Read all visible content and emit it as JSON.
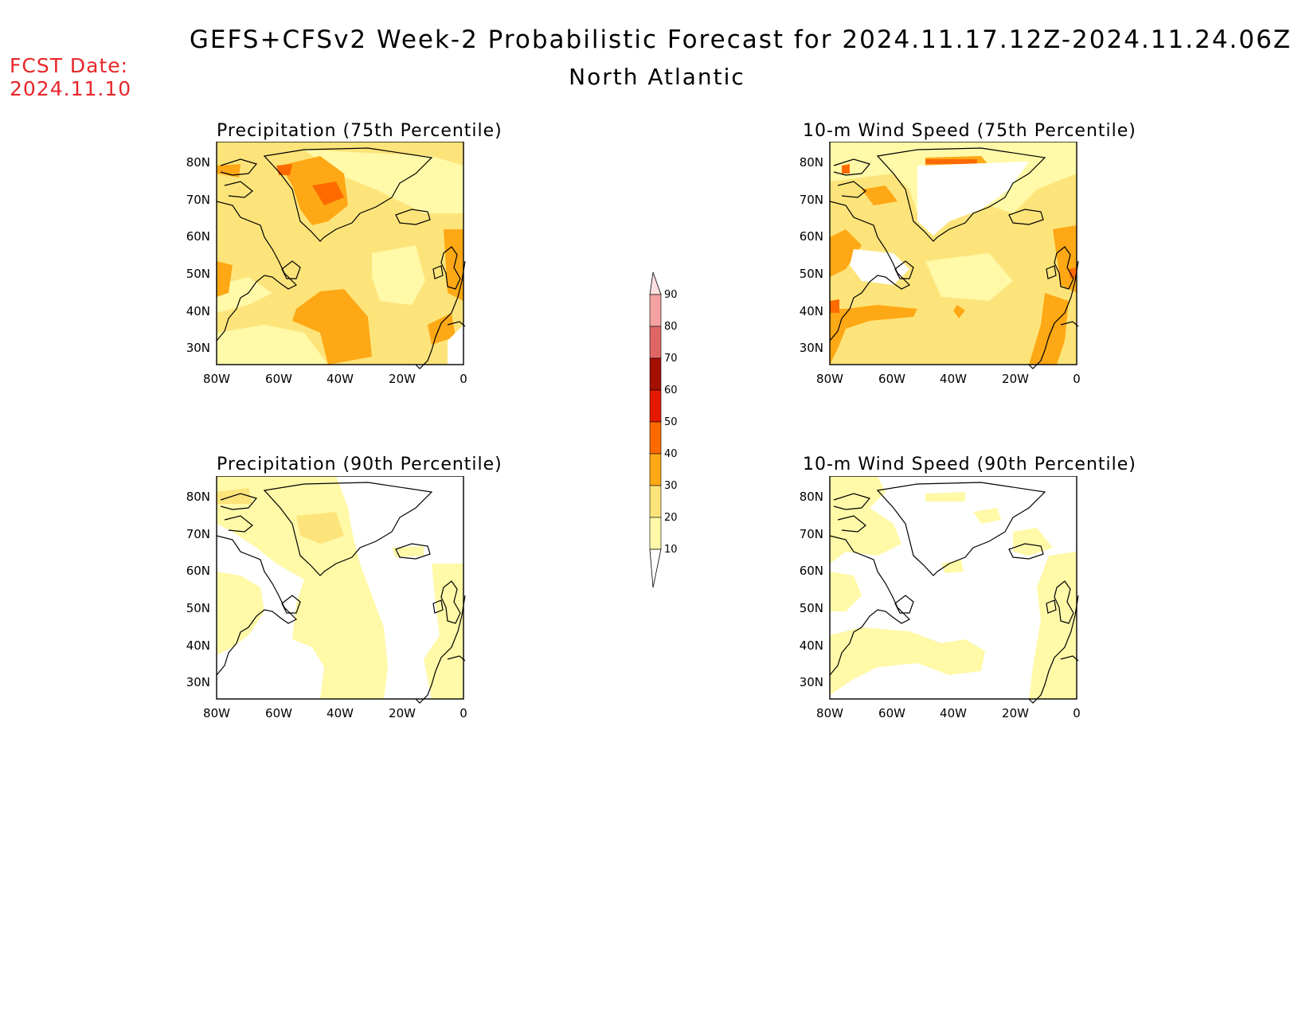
{
  "header": {
    "title": "GEFS+CFSv2 Week-2 Probabilistic Forecast for 2024.11.17.12Z-2024.11.24.06Z",
    "subtitle": "North Atlantic",
    "fcst_label": "FCST Date:",
    "fcst_date": "2024.11.10"
  },
  "colors": {
    "c10": "#fff9a8",
    "c20": "#fde47a",
    "c30": "#fea815",
    "c40": "#fe6a00",
    "c50": "#e31a00",
    "c60": "#a50f00",
    "c70": "#e06666",
    "c80": "#f4a1a1",
    "c90": "#fde0e0"
  },
  "panels": [
    {
      "id": "precip75",
      "title": "Precipitation (75th Percentile)"
    },
    {
      "id": "wind75",
      "title": "10-m Wind Speed (75th Percentile)"
    },
    {
      "id": "precip90",
      "title": "Precipitation (90th Percentile)"
    },
    {
      "id": "wind90",
      "title": "10-m Wind Speed (90th Percentile)"
    }
  ],
  "axes": {
    "lat_labels": [
      "80N",
      "70N",
      "60N",
      "50N",
      "40N",
      "30N"
    ],
    "lon_labels": [
      "80W",
      "60W",
      "40W",
      "20W",
      "0"
    ]
  },
  "colorbar": {
    "labels": [
      "10",
      "20",
      "30",
      "40",
      "50",
      "60",
      "70",
      "80",
      "90"
    ]
  }
}
